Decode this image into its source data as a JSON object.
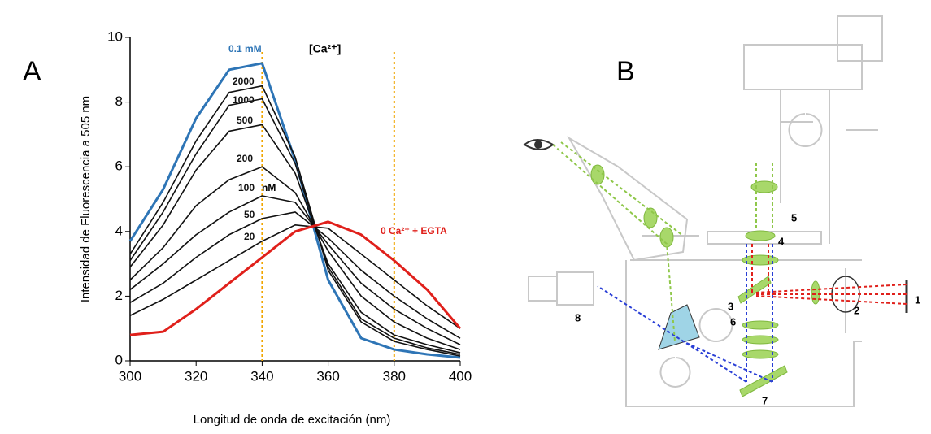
{
  "panels": {
    "a": "A",
    "b": "B"
  },
  "chart_data": {
    "type": "line",
    "y_label": "Intensidad de Fluorescencia  a 505 nm",
    "x_label": "Longitud de onda de excitación (nm)",
    "annotations": [
      "[Ca²⁺]",
      "nM"
    ],
    "x": [
      300,
      310,
      320,
      330,
      340,
      350,
      360,
      370,
      380,
      390,
      400
    ],
    "series": [
      {
        "name": "0.1 mM",
        "color": "#2e75b6",
        "values": [
          3.7,
          5.3,
          7.5,
          9.0,
          9.2,
          6.2,
          2.5,
          0.7,
          0.35,
          0.2,
          0.1
        ]
      },
      {
        "name": "2000",
        "color": "#111111",
        "values": [
          3.3,
          4.9,
          6.8,
          8.3,
          8.5,
          6.3,
          2.8,
          1.2,
          0.6,
          0.35,
          0.15
        ]
      },
      {
        "name": "1000",
        "color": "#111111",
        "values": [
          3.1,
          4.6,
          6.4,
          7.9,
          8.1,
          6.1,
          2.9,
          1.3,
          0.7,
          0.4,
          0.2
        ]
      },
      {
        "name": "500",
        "color": "#111111",
        "values": [
          2.9,
          4.2,
          5.9,
          7.1,
          7.3,
          5.8,
          3.0,
          1.5,
          0.8,
          0.5,
          0.25
        ]
      },
      {
        "name": "200",
        "color": "#111111",
        "values": [
          2.5,
          3.5,
          4.8,
          5.6,
          6.0,
          5.2,
          3.4,
          2.0,
          1.2,
          0.7,
          0.35
        ]
      },
      {
        "name": "100",
        "color": "#111111",
        "values": [
          2.2,
          3.0,
          3.9,
          4.6,
          5.1,
          4.9,
          3.6,
          2.4,
          1.6,
          1.0,
          0.5
        ]
      },
      {
        "name": "50",
        "color": "#111111",
        "values": [
          1.8,
          2.4,
          3.2,
          3.9,
          4.4,
          4.6,
          3.8,
          2.8,
          2.0,
          1.3,
          0.7
        ]
      },
      {
        "name": "20",
        "color": "#111111",
        "values": [
          1.4,
          1.9,
          2.5,
          3.1,
          3.7,
          4.2,
          4.1,
          3.3,
          2.5,
          1.7,
          1.0
        ]
      },
      {
        "name": "0 Ca²⁺ + EGTA",
        "color": "#e0201b",
        "values": [
          0.8,
          0.9,
          1.6,
          2.4,
          3.2,
          4.0,
          4.3,
          3.9,
          3.1,
          2.2,
          1.0
        ]
      }
    ],
    "vlines": [
      340,
      380
    ],
    "vline_color": "#f0a500",
    "xlim": [
      300,
      400
    ],
    "xticks": [
      300,
      320,
      340,
      360,
      380,
      400
    ],
    "ylim": [
      0,
      10
    ],
    "yticks": [
      0,
      2,
      4,
      6,
      8,
      10
    ]
  },
  "diagram": {
    "labels": [
      "1",
      "2",
      "3",
      "4",
      "5",
      "6",
      "7",
      "8"
    ]
  }
}
